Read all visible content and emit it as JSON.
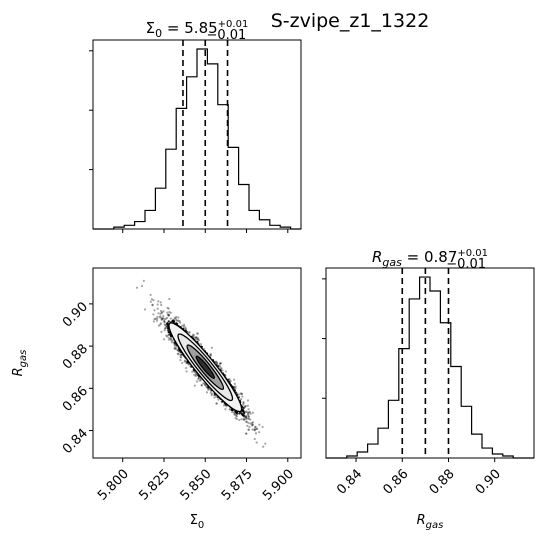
{
  "suptitle": "S-zvipe_z1_1322",
  "params": {
    "sigma0": {
      "label": "Σ",
      "label_sub": "0",
      "median": "5.85",
      "plus": "+0.01",
      "minus": "−0.01"
    },
    "rgas": {
      "label": "R",
      "label_sub": "gas",
      "median": "0.87",
      "plus": "+0.01",
      "minus": "−0.01"
    }
  },
  "chart_data": [
    {
      "type": "histogram",
      "panel": "sigma0-marginal",
      "xlim": [
        5.782,
        5.908
      ],
      "bin_edges": [
        5.782,
        5.7883,
        5.7946,
        5.8009,
        5.8072,
        5.8135,
        5.8198,
        5.8261,
        5.8324,
        5.8387,
        5.845,
        5.8513,
        5.8576,
        5.8639,
        5.8702,
        5.8765,
        5.8828,
        5.8891,
        5.8954,
        5.9017,
        5.908
      ],
      "counts": [
        0,
        0,
        1,
        2,
        4,
        10,
        22,
        43,
        65,
        82,
        97,
        89,
        67,
        44,
        24,
        10,
        5,
        2,
        1,
        0
      ],
      "quantiles": [
        5.8365,
        5.85,
        5.8635
      ],
      "xticks": [
        5.8,
        5.825,
        5.85,
        5.875,
        5.9
      ],
      "xtick_labels": [],
      "yticks_shown": true,
      "ytick_labels": []
    },
    {
      "type": "scatter-density",
      "panel": "sigma0-vs-rgas",
      "x_param": "sigma0",
      "y_param": "rgas",
      "xlim": [
        5.782,
        5.908
      ],
      "ylim": [
        0.827,
        0.917
      ],
      "correlation": -0.94,
      "center": [
        5.85,
        0.87
      ],
      "std": [
        0.011,
        0.0105
      ],
      "xticks": [
        5.8,
        5.825,
        5.85,
        5.875,
        5.9
      ],
      "xtick_labels": [
        "5.800",
        "5.825",
        "5.850",
        "5.875",
        "5.900"
      ],
      "yticks": [
        0.84,
        0.86,
        0.88,
        0.9
      ],
      "ytick_labels": [
        "0.84",
        "0.86",
        "0.88",
        "0.90"
      ],
      "contour_levels": [
        "0.5σ",
        "1σ",
        "1.5σ",
        "2σ"
      ]
    },
    {
      "type": "histogram",
      "panel": "rgas-marginal",
      "xlim": [
        0.827,
        0.917
      ],
      "bin_edges": [
        0.827,
        0.8315,
        0.836,
        0.8405,
        0.845,
        0.8495,
        0.854,
        0.8585,
        0.863,
        0.8675,
        0.872,
        0.8765,
        0.881,
        0.8855,
        0.89,
        0.8945,
        0.899,
        0.9035,
        0.908,
        0.9125,
        0.917
      ],
      "counts": [
        0,
        0,
        1,
        3,
        7,
        15,
        29,
        55,
        80,
        91,
        84,
        68,
        46,
        26,
        12,
        5,
        2,
        1,
        0,
        0
      ],
      "quantiles": [
        0.86,
        0.87,
        0.88
      ],
      "xticks": [
        0.84,
        0.86,
        0.88,
        0.9
      ],
      "xtick_labels": [
        "0.84",
        "0.86",
        "0.88",
        "0.90"
      ],
      "yticks_shown": true,
      "ytick_labels": []
    }
  ]
}
